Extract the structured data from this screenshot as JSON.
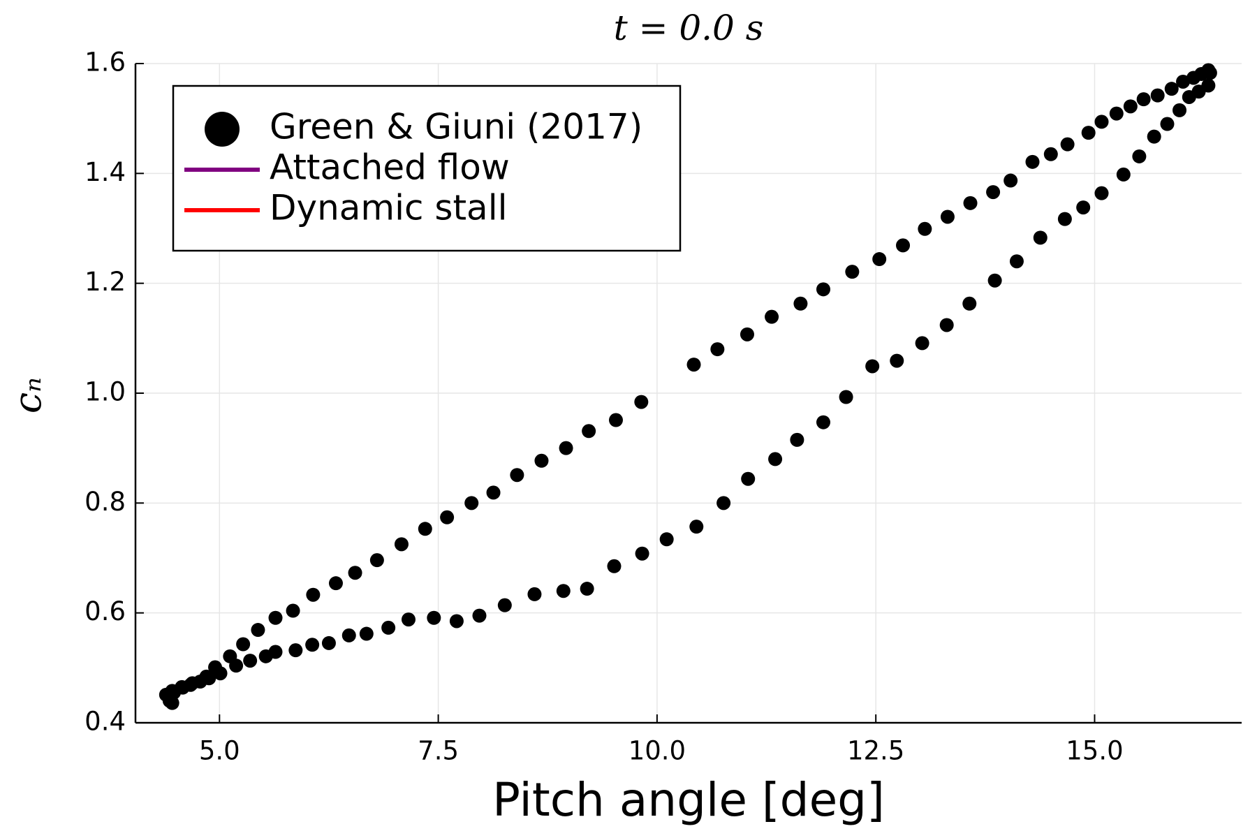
{
  "chart_data": {
    "type": "scatter",
    "title": "t = 0.0 s",
    "xlabel": "Pitch angle [deg]",
    "ylabel": "cₙ",
    "xlim": [
      4.04,
      16.68
    ],
    "ylim": [
      0.4,
      1.6
    ],
    "xticks": [
      {
        "value": 5,
        "label": "5.0"
      },
      7.5,
      {
        "value": 10,
        "label": "10.0"
      },
      12.5,
      {
        "value": 15,
        "label": "15.0"
      }
    ],
    "yticks": [
      0.4,
      0.6,
      0.8,
      {
        "value": 1,
        "label": "1.0"
      },
      1.2,
      1.4,
      1.6
    ],
    "grid": true,
    "legend": "top-left",
    "series": [
      {
        "name": "Green & Giuni (2017)",
        "color": "#000000",
        "mode": "markers",
        "x": [
          4.39,
          4.46,
          4.57,
          4.69,
          4.85,
          4.95,
          5.12,
          5.27,
          5.44,
          5.64,
          5.84,
          6.07,
          6.33,
          6.55,
          6.8,
          7.08,
          7.35,
          7.6,
          7.88,
          8.13,
          8.4,
          8.68,
          8.96,
          9.22,
          9.53,
          9.82,
          10.42,
          10.69,
          11.03,
          11.31,
          11.64,
          11.9,
          12.23,
          12.54,
          12.81,
          13.06,
          13.32,
          13.58,
          13.84,
          14.04,
          14.29,
          14.5,
          14.69,
          14.93,
          15.08,
          15.25,
          15.41,
          15.56,
          15.72,
          15.88,
          16.01,
          16.13,
          16.22,
          16.3,
          16.32,
          16.3,
          16.19,
          16.08,
          15.97,
          15.83,
          15.68,
          15.51,
          15.33,
          15.08,
          14.87,
          14.66,
          14.38,
          14.11,
          13.86,
          13.57,
          13.31,
          13.03,
          12.74,
          12.46,
          12.16,
          11.9,
          11.6,
          11.35,
          11.04,
          10.76,
          10.45,
          10.11,
          9.83,
          9.51,
          9.2,
          8.93,
          8.6,
          8.26,
          7.97,
          7.71,
          7.45,
          7.16,
          6.93,
          6.68,
          6.48,
          6.25,
          6.06,
          5.87,
          5.64,
          5.53,
          5.35,
          5.19,
          5.01,
          4.88,
          4.78,
          4.67,
          4.58,
          4.48,
          4.43,
          4.46
        ],
        "values": [
          0.451,
          0.458,
          0.465,
          0.472,
          0.484,
          0.501,
          0.521,
          0.543,
          0.569,
          0.591,
          0.604,
          0.633,
          0.654,
          0.673,
          0.696,
          0.725,
          0.753,
          0.774,
          0.8,
          0.819,
          0.851,
          0.877,
          0.9,
          0.931,
          0.951,
          0.984,
          1.052,
          1.08,
          1.107,
          1.139,
          1.163,
          1.189,
          1.221,
          1.244,
          1.269,
          1.299,
          1.321,
          1.346,
          1.366,
          1.387,
          1.421,
          1.435,
          1.453,
          1.474,
          1.494,
          1.509,
          1.522,
          1.535,
          1.542,
          1.554,
          1.567,
          1.574,
          1.581,
          1.588,
          1.583,
          1.56,
          1.549,
          1.539,
          1.515,
          1.49,
          1.467,
          1.431,
          1.398,
          1.364,
          1.338,
          1.317,
          1.283,
          1.24,
          1.205,
          1.163,
          1.124,
          1.091,
          1.059,
          1.049,
          0.993,
          0.947,
          0.915,
          0.88,
          0.844,
          0.8,
          0.757,
          0.734,
          0.708,
          0.685,
          0.644,
          0.64,
          0.634,
          0.614,
          0.595,
          0.585,
          0.591,
          0.588,
          0.573,
          0.562,
          0.559,
          0.545,
          0.542,
          0.532,
          0.529,
          0.521,
          0.513,
          0.504,
          0.49,
          0.481,
          0.475,
          0.469,
          0.464,
          0.455,
          0.44,
          0.436
        ]
      },
      {
        "name": "Attached flow",
        "color": "#800080",
        "mode": "lines",
        "x": [],
        "values": []
      },
      {
        "name": "Dynamic stall",
        "color": "#ff0000",
        "mode": "lines",
        "x": [],
        "values": []
      }
    ]
  }
}
